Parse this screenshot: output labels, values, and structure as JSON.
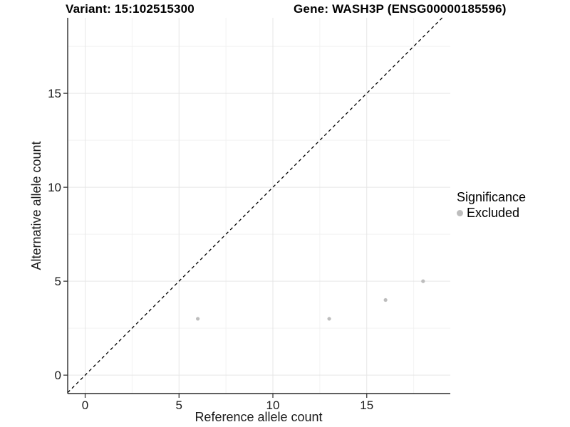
{
  "header": {
    "variant_title": "Variant: 15:102515300",
    "gene_title": "Gene: WASH3P (ENSG00000185596)"
  },
  "legend": {
    "title": "Significance",
    "items": [
      {
        "label": "Excluded",
        "color": "#bdbdbd",
        "marker": "circle"
      }
    ]
  },
  "chart_data": {
    "type": "scatter",
    "xlabel": "Reference allele count",
    "ylabel": "Alternative allele count",
    "xlim": [
      -0.93,
      19.45
    ],
    "ylim": [
      -0.98,
      19.02
    ],
    "x_major_ticks": [
      0,
      5,
      10,
      15
    ],
    "y_major_ticks": [
      0,
      5,
      10,
      15
    ],
    "x_minor_gridlines": [
      2.5,
      7.5,
      12.5,
      17.5
    ],
    "y_minor_gridlines": [
      2.5,
      7.5,
      12.5,
      17.5
    ],
    "grid": "major+minor",
    "legend_position": "right",
    "series": [
      {
        "name": "Excluded",
        "color": "#bdbdbd",
        "marker_radius": 2.6,
        "points": [
          {
            "x": 6,
            "y": 3
          },
          {
            "x": 13,
            "y": 3
          },
          {
            "x": 16,
            "y": 4
          },
          {
            "x": 18,
            "y": 5
          }
        ]
      }
    ],
    "reference_line": {
      "kind": "identity y=x",
      "style": "dashed",
      "color": "#000000"
    }
  },
  "style_colors": {
    "background": "#ffffff",
    "axis_line": "#2b2b2b",
    "tick_mark": "#2b2b2b",
    "tick_label": "#1a1a1a",
    "grid_major": "#e6e6e6",
    "grid_minor": "#f2f2f2"
  }
}
